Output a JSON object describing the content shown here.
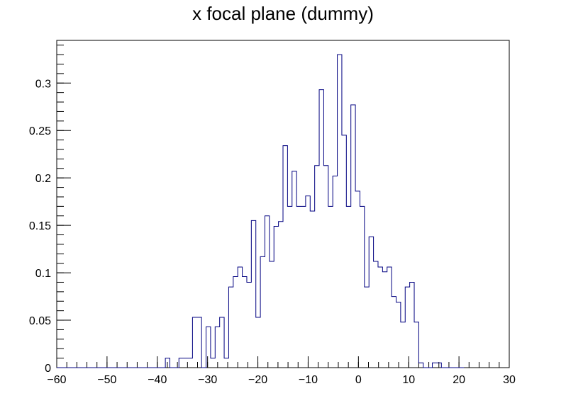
{
  "chart_data": {
    "type": "bar",
    "title": "x focal plane (dummy)",
    "xlabel": "",
    "ylabel": "",
    "xlim": [
      -60,
      30
    ],
    "ylim": [
      0,
      0.345
    ],
    "bin_width": 0.9,
    "grid": false,
    "line_color": "#000080",
    "x_ticks": [
      -60,
      -50,
      -40,
      -30,
      -20,
      -10,
      0,
      10,
      20,
      30
    ],
    "x_tick_labels": [
      "−60",
      "−50",
      "−40",
      "−30",
      "−20",
      "−10",
      "0",
      "10",
      "20",
      "30"
    ],
    "y_ticks": [
      0,
      0.05,
      0.1,
      0.15,
      0.2,
      0.25,
      0.3
    ],
    "y_tick_labels": [
      "0",
      "0.05",
      "0.1",
      "0.15",
      "0.2",
      "0.25",
      "0.3"
    ],
    "x_minor_step": 2,
    "y_minor_step": 0.01,
    "bin_edges_start": -60,
    "values": [
      0,
      0,
      0,
      0,
      0,
      0,
      0,
      0,
      0,
      0,
      0,
      0,
      0,
      0,
      0,
      0,
      0,
      0,
      0,
      0,
      0,
      0,
      0,
      0,
      0.01,
      0,
      0,
      0.01,
      0.01,
      0.01,
      0.053,
      0.053,
      0,
      0.043,
      0.01,
      0.043,
      0.053,
      0.01,
      0.085,
      0.096,
      0.106,
      0.096,
      0.09,
      0.155,
      0.053,
      0.117,
      0.16,
      0.112,
      0.149,
      0.154,
      0.234,
      0.17,
      0.207,
      0.17,
      0.17,
      0.181,
      0.165,
      0.213,
      0.293,
      0.213,
      0.17,
      0.202,
      0.33,
      0.245,
      0.17,
      0.277,
      0.186,
      0.17,
      0.085,
      0.138,
      0.112,
      0.106,
      0.101,
      0.106,
      0.075,
      0.069,
      0.048,
      0.085,
      0.09,
      0.048,
      0.005,
      0,
      0,
      0.005,
      0.005,
      0,
      0,
      0,
      0,
      0
    ]
  }
}
